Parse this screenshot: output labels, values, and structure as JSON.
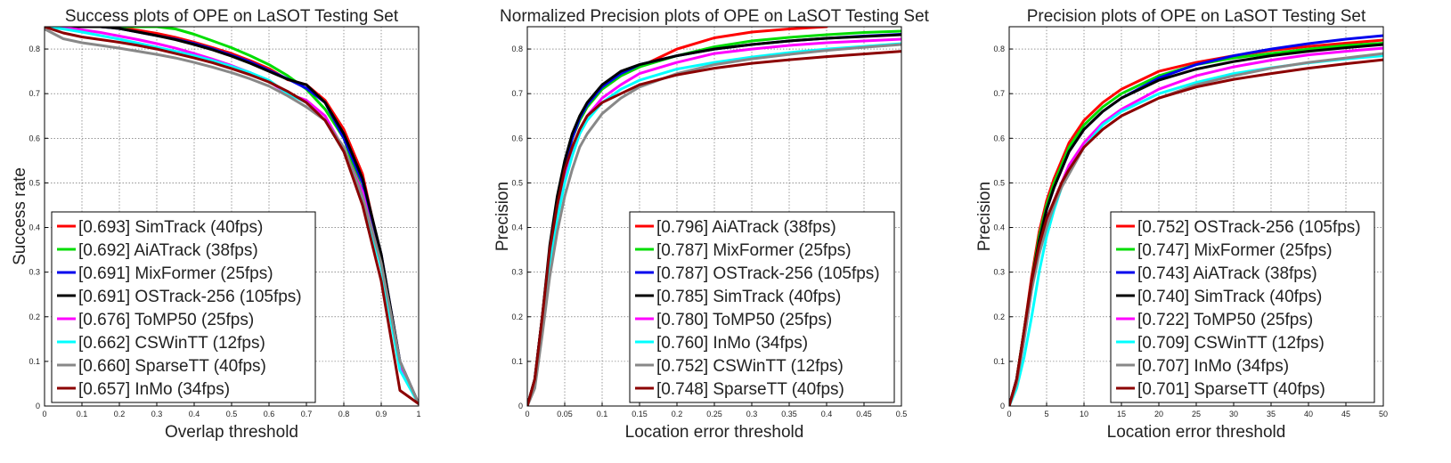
{
  "series_colors": {
    "red": "#ff0000",
    "green": "#00dd00",
    "blue": "#0000ee",
    "black": "#000000",
    "magenta": "#ff00ff",
    "cyan": "#00ffff",
    "gray": "#888888",
    "darkred": "#8b0000"
  },
  "chart_data": [
    {
      "type": "line",
      "title": "Success plots of OPE on LaSOT Testing Set",
      "xlabel": "Overlap threshold",
      "ylabel": "Success rate",
      "xlim": [
        0,
        1
      ],
      "ylim": [
        0,
        0.85
      ],
      "xticks": [
        "0",
        "0.1",
        "0.2",
        "0.3",
        "0.4",
        "0.5",
        "0.6",
        "0.7",
        "0.8",
        "0.9",
        "1"
      ],
      "xtick_values": [
        0,
        0.1,
        0.2,
        0.3,
        0.4,
        0.5,
        0.6,
        0.7,
        0.8,
        0.9,
        1
      ],
      "yticks": [
        "0",
        "0.1",
        "0.2",
        "0.3",
        "0.4",
        "0.5",
        "0.6",
        "0.7",
        "0.8"
      ],
      "ytick_values": [
        0,
        0.1,
        0.2,
        0.3,
        0.4,
        0.5,
        0.6,
        0.7,
        0.8
      ],
      "grid": true,
      "legend_position": "bottom-left",
      "x": [
        0,
        0.05,
        0.1,
        0.15,
        0.2,
        0.25,
        0.3,
        0.35,
        0.4,
        0.45,
        0.5,
        0.55,
        0.6,
        0.65,
        0.7,
        0.75,
        0.8,
        0.85,
        0.9,
        0.95,
        1
      ],
      "series": [
        {
          "name": "[0.693] SimTrack (40fps)",
          "color": "red",
          "values": [
            0.85,
            0.85,
            0.85,
            0.85,
            0.848,
            0.842,
            0.835,
            0.826,
            0.815,
            0.803,
            0.79,
            0.774,
            0.756,
            0.731,
            0.72,
            0.685,
            0.62,
            0.52,
            0.33,
            0.09,
            0.005
          ]
        },
        {
          "name": "[0.692] AiATrack (38fps)",
          "color": "green",
          "values": [
            0.85,
            0.85,
            0.85,
            0.85,
            0.85,
            0.85,
            0.85,
            0.845,
            0.833,
            0.818,
            0.803,
            0.785,
            0.765,
            0.74,
            0.71,
            0.665,
            0.6,
            0.48,
            0.31,
            0.09,
            0.005
          ]
        },
        {
          "name": "[0.691] MixFormer (25fps)",
          "color": "blue",
          "values": [
            0.85,
            0.85,
            0.85,
            0.85,
            0.846,
            0.838,
            0.83,
            0.822,
            0.812,
            0.8,
            0.786,
            0.771,
            0.752,
            0.733,
            0.712,
            0.68,
            0.6,
            0.5,
            0.34,
            0.1,
            0.005
          ]
        },
        {
          "name": "[0.691] OSTrack-256 (105fps)",
          "color": "black",
          "values": [
            0.85,
            0.85,
            0.85,
            0.85,
            0.846,
            0.838,
            0.83,
            0.821,
            0.81,
            0.798,
            0.784,
            0.768,
            0.75,
            0.732,
            0.72,
            0.68,
            0.61,
            0.51,
            0.34,
            0.1,
            0.005
          ]
        },
        {
          "name": "[0.676] ToMP50 (25fps)",
          "color": "magenta",
          "values": [
            0.85,
            0.848,
            0.843,
            0.837,
            0.829,
            0.821,
            0.812,
            0.802,
            0.79,
            0.777,
            0.763,
            0.747,
            0.727,
            0.7,
            0.685,
            0.65,
            0.575,
            0.48,
            0.31,
            0.09,
            0.005
          ]
        },
        {
          "name": "[0.662] CSWinTT (12fps)",
          "color": "cyan",
          "values": [
            0.85,
            0.845,
            0.838,
            0.83,
            0.822,
            0.813,
            0.804,
            0.795,
            0.785,
            0.774,
            0.761,
            0.747,
            0.73,
            0.7,
            0.68,
            0.64,
            0.57,
            0.46,
            0.31,
            0.08,
            0.005
          ]
        },
        {
          "name": "[0.660] SparseTT (40fps)",
          "color": "gray",
          "values": [
            0.845,
            0.823,
            0.814,
            0.808,
            0.802,
            0.795,
            0.788,
            0.78,
            0.77,
            0.759,
            0.747,
            0.733,
            0.717,
            0.695,
            0.67,
            0.64,
            0.58,
            0.47,
            0.32,
            0.1,
            0.005
          ]
        },
        {
          "name": "[0.657] InMo (34fps)",
          "color": "darkred",
          "values": [
            0.85,
            0.836,
            0.827,
            0.821,
            0.815,
            0.808,
            0.8,
            0.79,
            0.78,
            0.769,
            0.756,
            0.742,
            0.726,
            0.705,
            0.68,
            0.64,
            0.57,
            0.45,
            0.28,
            0.035,
            0.005
          ]
        }
      ]
    },
    {
      "type": "line",
      "title": "Normalized Precision plots of OPE on LaSOT Testing Set",
      "xlabel": "Location error threshold",
      "ylabel": "Precision",
      "xlim": [
        0,
        0.5
      ],
      "ylim": [
        0,
        0.85
      ],
      "xticks": [
        "0",
        "0.05",
        "0.1",
        "0.15",
        "0.2",
        "0.25",
        "0.3",
        "0.35",
        "0.4",
        "0.45",
        "0.5"
      ],
      "xtick_values": [
        0,
        0.05,
        0.1,
        0.15,
        0.2,
        0.25,
        0.3,
        0.35,
        0.4,
        0.45,
        0.5
      ],
      "yticks": [
        "0",
        "0.1",
        "0.2",
        "0.3",
        "0.4",
        "0.5",
        "0.6",
        "0.7",
        "0.8"
      ],
      "ytick_values": [
        0,
        0.1,
        0.2,
        0.3,
        0.4,
        0.5,
        0.6,
        0.7,
        0.8
      ],
      "grid": true,
      "legend_position": "bottom-right",
      "x": [
        0,
        0.01,
        0.02,
        0.03,
        0.04,
        0.05,
        0.06,
        0.07,
        0.08,
        0.1,
        0.125,
        0.15,
        0.2,
        0.25,
        0.3,
        0.35,
        0.4,
        0.45,
        0.5
      ],
      "series": [
        {
          "name": "[0.796] AiATrack (38fps)",
          "color": "red",
          "values": [
            0,
            0.06,
            0.2,
            0.35,
            0.46,
            0.54,
            0.6,
            0.64,
            0.67,
            0.71,
            0.74,
            0.76,
            0.8,
            0.825,
            0.838,
            0.845,
            0.85,
            null,
            null
          ]
        },
        {
          "name": "[0.787] MixFormer (25fps)",
          "color": "green",
          "values": [
            0,
            0.06,
            0.2,
            0.35,
            0.46,
            0.54,
            0.6,
            0.64,
            0.67,
            0.71,
            0.74,
            0.76,
            0.785,
            0.805,
            0.818,
            0.826,
            0.832,
            0.837,
            0.84
          ]
        },
        {
          "name": "[0.787] OSTrack-256 (105fps)",
          "color": "blue",
          "values": [
            0,
            0.06,
            0.2,
            0.35,
            0.46,
            0.54,
            0.6,
            0.645,
            0.675,
            0.715,
            0.745,
            0.765,
            0.785,
            0.8,
            0.81,
            0.818,
            0.824,
            0.829,
            0.833
          ]
        },
        {
          "name": "[0.785] SimTrack (40fps)",
          "color": "black",
          "values": [
            0,
            0.06,
            0.2,
            0.36,
            0.47,
            0.55,
            0.61,
            0.65,
            0.68,
            0.72,
            0.75,
            0.765,
            0.785,
            0.8,
            0.81,
            0.818,
            0.824,
            0.828,
            0.832
          ]
        },
        {
          "name": "[0.780] ToMP50 (25fps)",
          "color": "magenta",
          "values": [
            0,
            0.05,
            0.18,
            0.32,
            0.43,
            0.51,
            0.57,
            0.62,
            0.65,
            0.69,
            0.72,
            0.745,
            0.77,
            0.79,
            0.8,
            0.808,
            0.814,
            0.818,
            0.822
          ]
        },
        {
          "name": "[0.760] InMo (34fps)",
          "color": "cyan",
          "values": [
            0,
            0.05,
            0.17,
            0.31,
            0.42,
            0.5,
            0.56,
            0.61,
            0.64,
            0.68,
            0.71,
            0.73,
            0.755,
            0.77,
            0.782,
            0.792,
            0.8,
            0.806,
            0.812
          ]
        },
        {
          "name": "[0.752] CSWinTT (12fps)",
          "color": "gray",
          "values": [
            0,
            0.04,
            0.16,
            0.29,
            0.39,
            0.47,
            0.53,
            0.58,
            0.61,
            0.655,
            0.69,
            0.715,
            0.745,
            0.765,
            0.778,
            0.788,
            0.797,
            0.804,
            0.81
          ]
        },
        {
          "name": "[0.748] SparseTT (40fps)",
          "color": "darkred",
          "values": [
            0,
            0.06,
            0.2,
            0.35,
            0.45,
            0.53,
            0.58,
            0.62,
            0.65,
            0.68,
            0.7,
            0.72,
            0.742,
            0.757,
            0.768,
            0.776,
            0.783,
            0.789,
            0.795
          ]
        }
      ]
    },
    {
      "type": "line",
      "title": "Precision plots of OPE on LaSOT Testing Set",
      "xlabel": "Location error threshold",
      "ylabel": "Precision",
      "xlim": [
        0,
        50
      ],
      "ylim": [
        0,
        0.85
      ],
      "xticks": [
        "0",
        "5",
        "10",
        "15",
        "20",
        "25",
        "30",
        "35",
        "40",
        "45",
        "50"
      ],
      "xtick_values": [
        0,
        5,
        10,
        15,
        20,
        25,
        30,
        35,
        40,
        45,
        50
      ],
      "yticks": [
        "0",
        "0.1",
        "0.2",
        "0.3",
        "0.4",
        "0.5",
        "0.6",
        "0.7",
        "0.8"
      ],
      "ytick_values": [
        0,
        0.1,
        0.2,
        0.3,
        0.4,
        0.5,
        0.6,
        0.7,
        0.8
      ],
      "grid": true,
      "legend_position": "bottom-right",
      "x": [
        0,
        1,
        2,
        3,
        4,
        5,
        6,
        7,
        8,
        10,
        12.5,
        15,
        20,
        25,
        30,
        35,
        40,
        45,
        50
      ],
      "series": [
        {
          "name": "[0.752] OSTrack-256 (105fps)",
          "color": "red",
          "values": [
            0,
            0.06,
            0.17,
            0.29,
            0.39,
            0.46,
            0.51,
            0.55,
            0.59,
            0.64,
            0.68,
            0.71,
            0.75,
            0.77,
            0.785,
            0.797,
            0.806,
            0.813,
            0.82
          ]
        },
        {
          "name": "[0.747] MixFormer (25fps)",
          "color": "green",
          "values": [
            0,
            0.06,
            0.17,
            0.28,
            0.38,
            0.45,
            0.5,
            0.54,
            0.58,
            0.63,
            0.67,
            0.7,
            0.74,
            0.765,
            0.78,
            0.79,
            0.8,
            0.808,
            0.813
          ]
        },
        {
          "name": "[0.743] AiATrack (38fps)",
          "color": "blue",
          "values": [
            0,
            0.06,
            0.16,
            0.27,
            0.37,
            0.44,
            0.49,
            0.53,
            0.57,
            0.62,
            0.66,
            0.69,
            0.735,
            0.765,
            0.785,
            0.8,
            0.812,
            0.822,
            0.83
          ]
        },
        {
          "name": "[0.740] SimTrack (40fps)",
          "color": "black",
          "values": [
            0,
            0.06,
            0.17,
            0.28,
            0.37,
            0.44,
            0.49,
            0.53,
            0.57,
            0.62,
            0.66,
            0.69,
            0.73,
            0.755,
            0.772,
            0.785,
            0.795,
            0.803,
            0.81
          ]
        },
        {
          "name": "[0.722] ToMP50 (25fps)",
          "color": "magenta",
          "values": [
            0,
            0.05,
            0.15,
            0.26,
            0.35,
            0.41,
            0.46,
            0.5,
            0.54,
            0.59,
            0.635,
            0.665,
            0.71,
            0.74,
            0.76,
            0.775,
            0.787,
            0.795,
            0.802
          ]
        },
        {
          "name": "[0.709] CSWinTT (12fps)",
          "color": "cyan",
          "values": [
            0,
            0.04,
            0.11,
            0.2,
            0.3,
            0.38,
            0.44,
            0.49,
            0.53,
            0.58,
            0.63,
            0.66,
            0.7,
            0.725,
            0.745,
            0.758,
            0.769,
            0.778,
            0.785
          ]
        },
        {
          "name": "[0.707] InMo (34fps)",
          "color": "gray",
          "values": [
            0,
            0.05,
            0.15,
            0.26,
            0.34,
            0.4,
            0.45,
            0.49,
            0.52,
            0.58,
            0.62,
            0.65,
            0.69,
            0.72,
            0.74,
            0.757,
            0.77,
            0.78,
            0.79
          ]
        },
        {
          "name": "[0.701] SparseTT (40fps)",
          "color": "darkred",
          "values": [
            0,
            0.06,
            0.17,
            0.28,
            0.36,
            0.42,
            0.46,
            0.5,
            0.53,
            0.58,
            0.62,
            0.65,
            0.69,
            0.715,
            0.732,
            0.745,
            0.757,
            0.767,
            0.776
          ]
        }
      ]
    }
  ]
}
